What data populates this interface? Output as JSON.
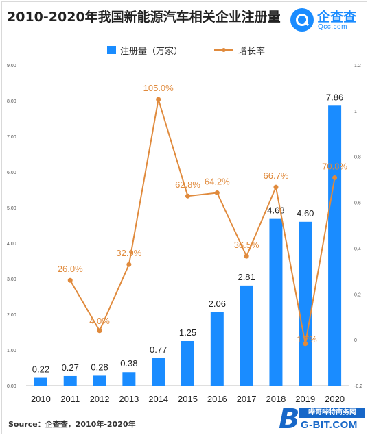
{
  "title": "2010-2020年我国新能源汽车相关企业注册量",
  "logo": {
    "name": "企查查",
    "sub": "Qcc.com"
  },
  "watermark_brand": {
    "top": "哔哥哔特商务网",
    "bottom": "G-BIT.COM",
    "initial": "B"
  },
  "source": "Source：企查查，2010年-2020年",
  "colors": {
    "bar": "#1a8cff",
    "line": "#e08a3c",
    "bar_label": "#222222",
    "line_label": "#e08a3c"
  },
  "chart_data": {
    "type": "bar",
    "categories": [
      "2010",
      "2011",
      "2012",
      "2013",
      "2014",
      "2015",
      "2016",
      "2017",
      "2018",
      "2019",
      "2020"
    ],
    "series": [
      {
        "name": "注册量（万家）",
        "type": "bar",
        "axis": "left",
        "values": [
          0.22,
          0.27,
          0.28,
          0.38,
          0.77,
          1.25,
          2.06,
          2.81,
          4.68,
          4.6,
          7.86
        ],
        "labels": [
          "0.22",
          "0.27",
          "0.28",
          "0.38",
          "0.77",
          "1.25",
          "2.06",
          "2.81",
          "4.68",
          "4.60",
          "7.86"
        ]
      },
      {
        "name": "增长率",
        "type": "line",
        "axis": "right",
        "values": [
          null,
          0.26,
          0.04,
          0.329,
          1.05,
          0.628,
          0.642,
          0.365,
          0.667,
          -0.017,
          0.708
        ],
        "labels": [
          null,
          "26.0%",
          "4.0%",
          "32.9%",
          "105.0%",
          "62.8%",
          "64.2%",
          "36.5%",
          "66.7%",
          "-1.7%",
          "70.8%"
        ]
      }
    ],
    "y_left": {
      "range": [
        0,
        9
      ],
      "ticks": [
        "0.00",
        "1.00",
        "2.00",
        "3.00",
        "4.00",
        "5.00",
        "6.00",
        "7.00",
        "8.00",
        "9.00"
      ]
    },
    "y_right": {
      "range": [
        -0.2,
        1.2
      ],
      "ticks": [
        "-0.2",
        "0",
        "0.2",
        "0.4",
        "0.6",
        "0.8",
        "1",
        "1.2"
      ]
    },
    "legend_position": "top-center",
    "grid": false
  }
}
